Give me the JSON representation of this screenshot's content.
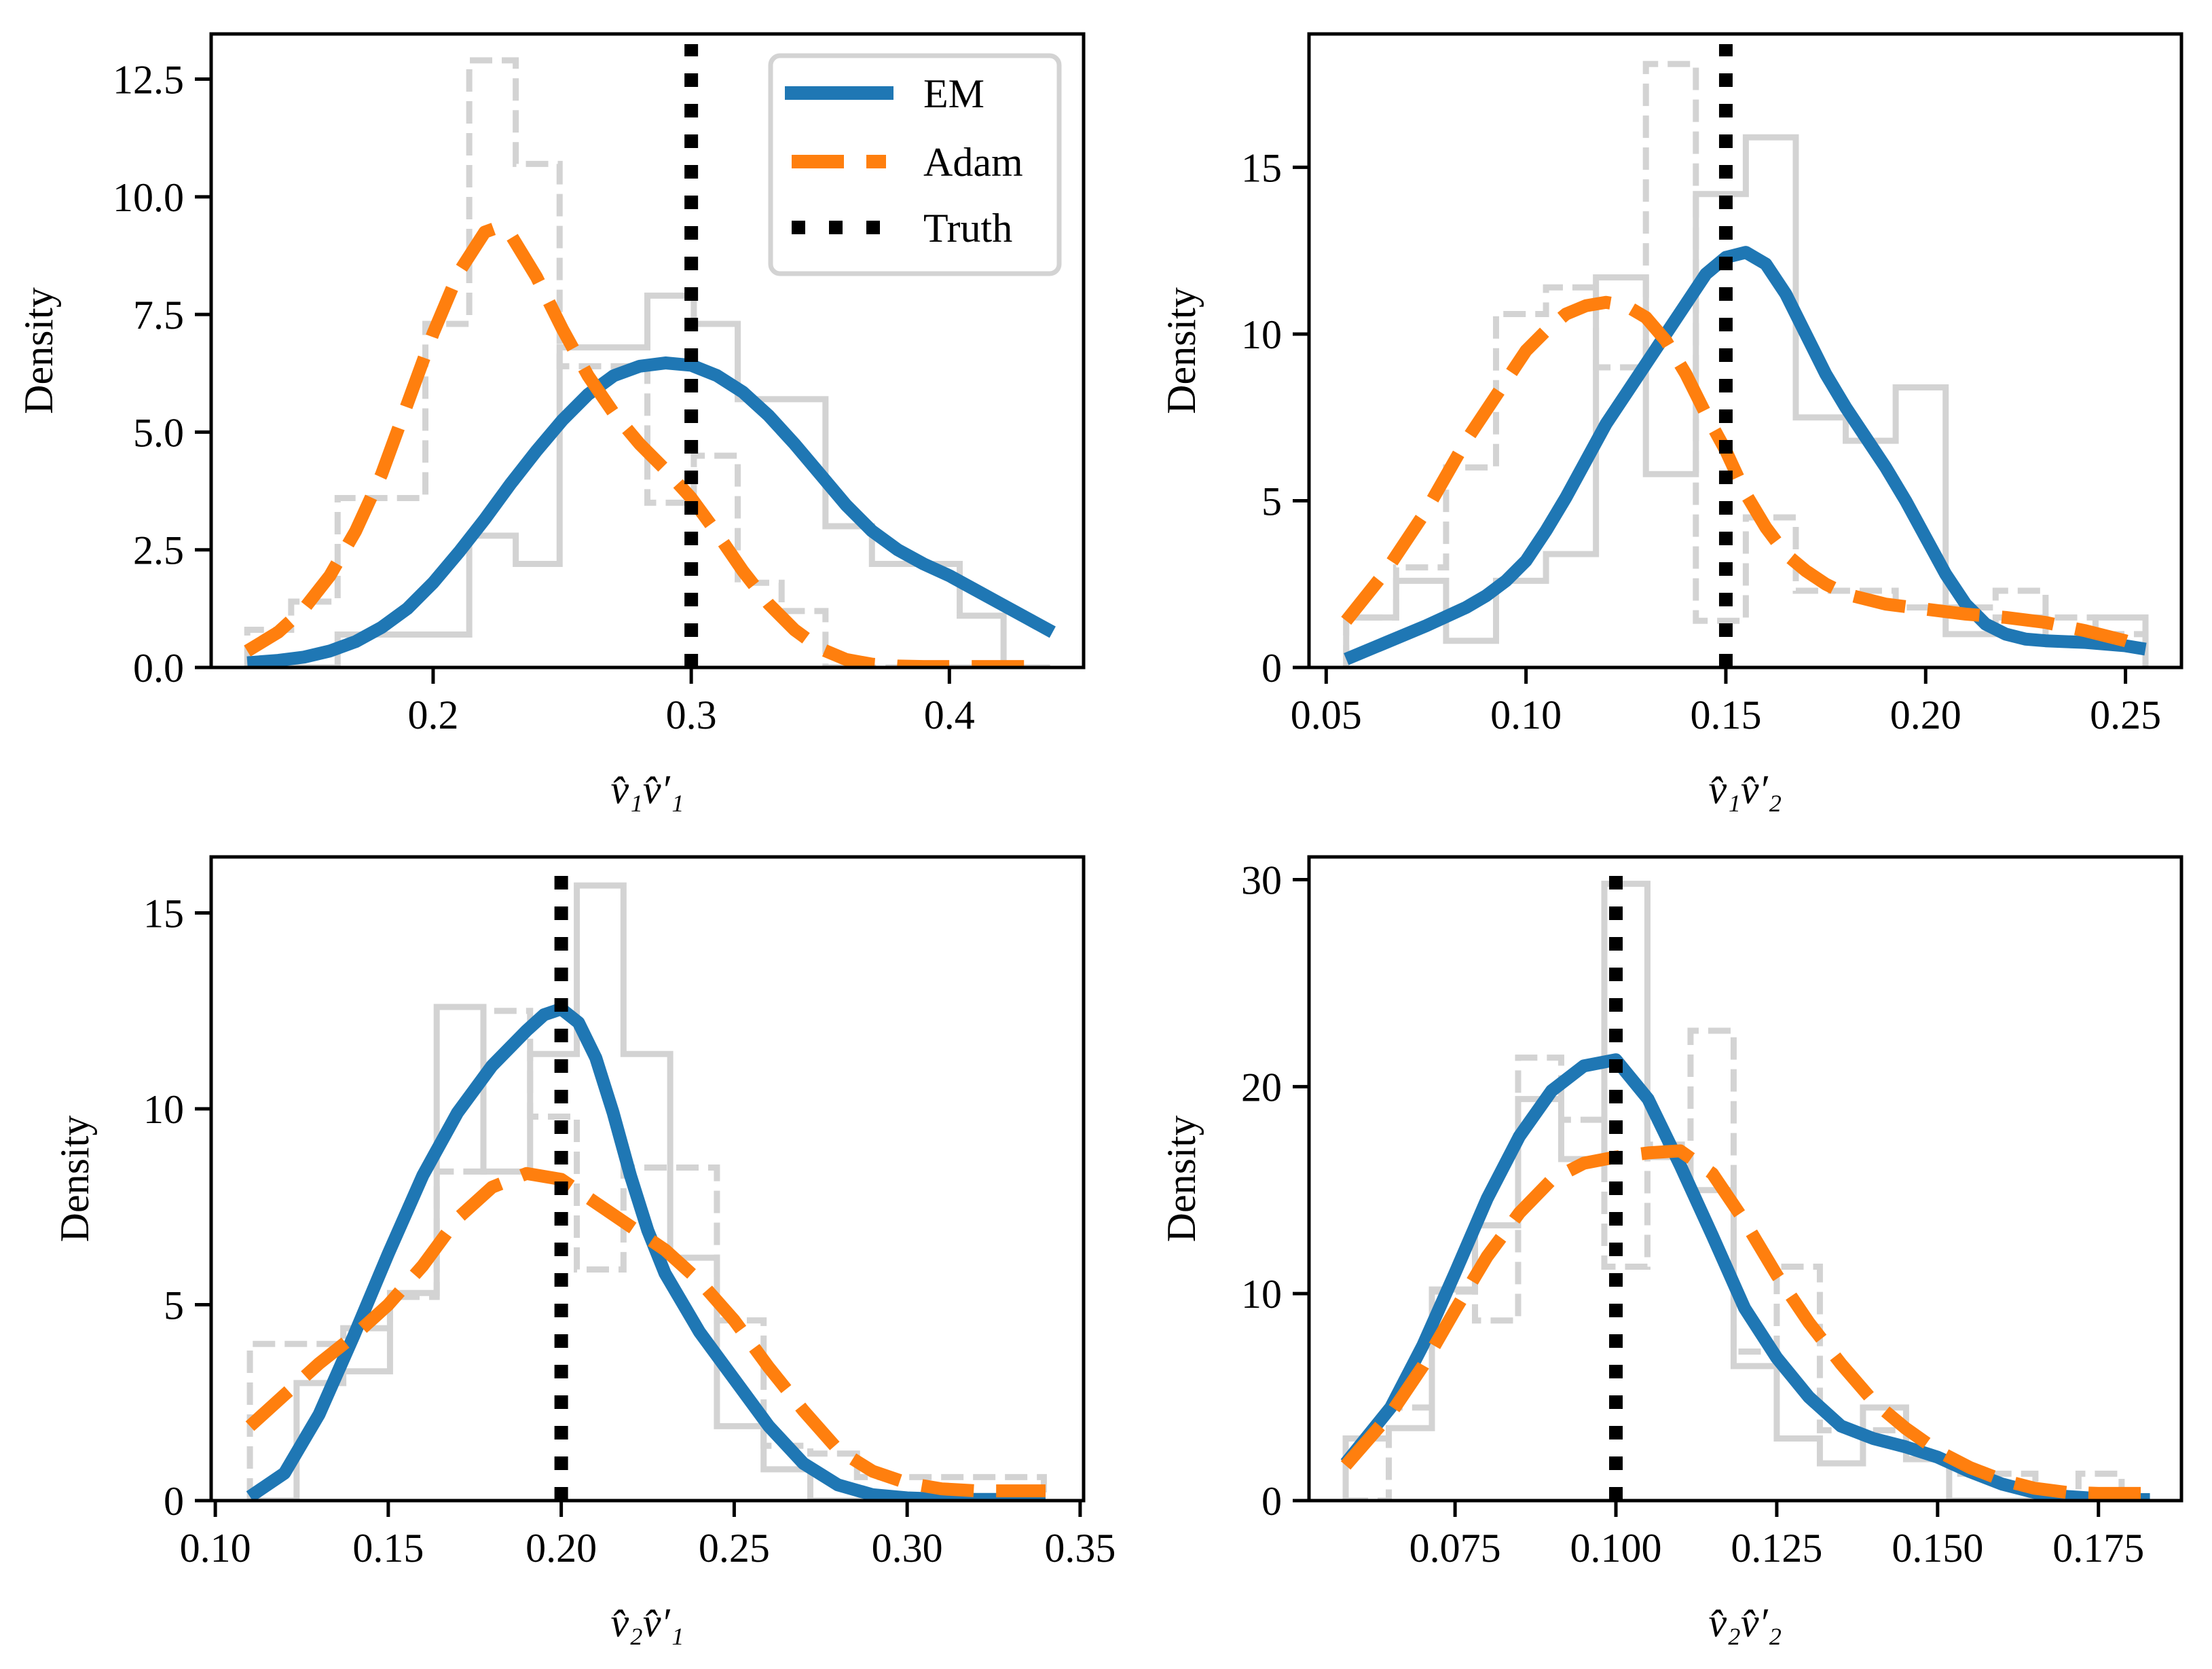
{
  "figure": {
    "legend_entries": [
      {
        "label": "EM",
        "color": "#1f77b4",
        "style": "solid"
      },
      {
        "label": "Adam",
        "color": "#ff7f0e",
        "style": "dashed"
      },
      {
        "label": "Truth",
        "color": "#000000",
        "style": "dotted"
      }
    ],
    "histogram_color": "#d3d3d3"
  },
  "chart_data": [
    {
      "type": "line",
      "title": "",
      "xlabel": "v̂₁v̂′₁",
      "ylabel": "Density",
      "xlim": [
        0.114,
        0.452
      ],
      "ylim": [
        0,
        13.46
      ],
      "xticks": [
        0.2,
        0.3,
        0.4
      ],
      "xtick_labels": [
        "0.2",
        "0.3",
        "0.4"
      ],
      "yticks": [
        0,
        2.5,
        5,
        7.5,
        10,
        12.5
      ],
      "ytick_labels": [
        "0.0",
        "2.5",
        "5.0",
        "7.5",
        "10.0",
        "12.5"
      ],
      "legend": "top-right",
      "truth": 0.3,
      "series": [
        {
          "name": "EM",
          "x": [
            0.128,
            0.14,
            0.15,
            0.16,
            0.17,
            0.18,
            0.19,
            0.2,
            0.21,
            0.22,
            0.23,
            0.24,
            0.25,
            0.26,
            0.27,
            0.28,
            0.29,
            0.3,
            0.31,
            0.32,
            0.33,
            0.34,
            0.35,
            0.36,
            0.37,
            0.38,
            0.39,
            0.4,
            0.41,
            0.42,
            0.43,
            0.44
          ],
          "y": [
            0.1,
            0.15,
            0.22,
            0.35,
            0.55,
            0.85,
            1.25,
            1.8,
            2.45,
            3.15,
            3.9,
            4.6,
            5.25,
            5.8,
            6.2,
            6.4,
            6.47,
            6.42,
            6.2,
            5.85,
            5.35,
            4.75,
            4.1,
            3.45,
            2.9,
            2.5,
            2.2,
            1.95,
            1.65,
            1.35,
            1.05,
            0.75
          ]
        },
        {
          "name": "Adam",
          "x": [
            0.128,
            0.14,
            0.15,
            0.16,
            0.17,
            0.18,
            0.19,
            0.2,
            0.21,
            0.22,
            0.225,
            0.23,
            0.24,
            0.25,
            0.26,
            0.27,
            0.28,
            0.29,
            0.3,
            0.31,
            0.32,
            0.33,
            0.34,
            0.35,
            0.36,
            0.37,
            0.38,
            0.39,
            0.4,
            0.41,
            0.42,
            0.43
          ],
          "y": [
            0.35,
            0.75,
            1.25,
            1.95,
            2.9,
            4.1,
            5.6,
            7.1,
            8.4,
            9.25,
            9.35,
            9.2,
            8.3,
            7.2,
            6.2,
            5.4,
            4.75,
            4.2,
            3.6,
            2.85,
            2.05,
            1.35,
            0.8,
            0.4,
            0.17,
            0.07,
            0.03,
            0.02,
            0.02,
            0.02,
            0.02,
            0.02
          ]
        }
      ],
      "histograms": [
        {
          "name": "EM",
          "style": "solid",
          "edges": [
            0.128,
            0.145,
            0.163,
            0.18,
            0.197,
            0.214,
            0.232,
            0.249,
            0.266,
            0.283,
            0.301,
            0.318,
            0.335,
            0.352,
            0.37,
            0.387,
            0.404,
            0.421,
            0.439
          ],
          "heights": [
            0.0,
            0.0,
            0.7,
            0.7,
            0.7,
            2.8,
            2.2,
            6.8,
            6.8,
            7.9,
            7.3,
            5.7,
            5.7,
            3.0,
            2.2,
            2.2,
            1.1,
            0.0
          ]
        },
        {
          "name": "Adam",
          "style": "dashed",
          "edges": [
            0.128,
            0.145,
            0.163,
            0.18,
            0.197,
            0.214,
            0.232,
            0.249,
            0.266,
            0.283,
            0.301,
            0.318,
            0.335,
            0.352,
            0.37,
            0.387,
            0.404,
            0.421,
            0.439
          ],
          "heights": [
            0.8,
            1.4,
            3.6,
            3.6,
            7.3,
            12.9,
            10.7,
            6.4,
            6.4,
            3.5,
            4.5,
            1.8,
            1.2,
            0.0,
            0.0,
            0.0,
            0.0,
            0.0
          ]
        }
      ]
    },
    {
      "type": "line",
      "title": "",
      "xlabel": "v̂₁v̂′₂",
      "ylabel": "Density",
      "xlim": [
        0.0457,
        0.264
      ],
      "ylim": [
        0,
        19.0
      ],
      "xticks": [
        0.05,
        0.1,
        0.15,
        0.2,
        0.25
      ],
      "xtick_labels": [
        "0.05",
        "0.10",
        "0.15",
        "0.20",
        "0.25"
      ],
      "yticks": [
        0,
        5,
        10,
        15
      ],
      "ytick_labels": [
        "0",
        "5",
        "10",
        "15"
      ],
      "truth": 0.15,
      "series": [
        {
          "name": "EM",
          "x": [
            0.055,
            0.065,
            0.075,
            0.085,
            0.09,
            0.095,
            0.1,
            0.105,
            0.11,
            0.115,
            0.12,
            0.125,
            0.13,
            0.135,
            0.14,
            0.145,
            0.15,
            0.155,
            0.16,
            0.165,
            0.17,
            0.175,
            0.18,
            0.185,
            0.19,
            0.195,
            0.2,
            0.205,
            0.21,
            0.215,
            0.22,
            0.225,
            0.23,
            0.24,
            0.25,
            0.255
          ],
          "y": [
            0.25,
            0.75,
            1.25,
            1.8,
            2.15,
            2.6,
            3.2,
            4.1,
            5.1,
            6.2,
            7.3,
            8.2,
            9.1,
            10.0,
            10.9,
            11.8,
            12.3,
            12.45,
            12.1,
            11.2,
            10.0,
            8.8,
            7.8,
            6.9,
            6.0,
            5.0,
            3.9,
            2.8,
            1.9,
            1.3,
            1.0,
            0.85,
            0.8,
            0.75,
            0.65,
            0.55
          ]
        },
        {
          "name": "Adam",
          "x": [
            0.055,
            0.065,
            0.075,
            0.085,
            0.095,
            0.1,
            0.105,
            0.11,
            0.115,
            0.12,
            0.125,
            0.13,
            0.135,
            0.14,
            0.145,
            0.15,
            0.155,
            0.16,
            0.165,
            0.17,
            0.175,
            0.18,
            0.19,
            0.2,
            0.21,
            0.22,
            0.23,
            0.24,
            0.25,
            0.255
          ],
          "y": [
            1.4,
            2.9,
            4.7,
            6.8,
            8.6,
            9.5,
            10.1,
            10.6,
            10.85,
            10.95,
            10.85,
            10.5,
            9.8,
            8.8,
            7.6,
            6.5,
            5.2,
            4.2,
            3.4,
            2.9,
            2.5,
            2.2,
            1.9,
            1.75,
            1.6,
            1.5,
            1.35,
            1.1,
            0.8,
            0.6
          ]
        }
      ],
      "histograms": [
        {
          "name": "EM",
          "style": "solid",
          "edges": [
            0.055,
            0.0675,
            0.08,
            0.0925,
            0.105,
            0.1175,
            0.13,
            0.1425,
            0.155,
            0.1675,
            0.18,
            0.1925,
            0.205,
            0.2175,
            0.23,
            0.2425,
            0.255
          ],
          "heights": [
            1.5,
            2.6,
            0.8,
            2.6,
            3.4,
            11.7,
            5.8,
            14.2,
            15.9,
            7.5,
            6.8,
            8.4,
            1.0,
            1.5,
            0.8,
            1.5
          ]
        },
        {
          "name": "Adam",
          "style": "dashed",
          "edges": [
            0.055,
            0.0675,
            0.08,
            0.0925,
            0.105,
            0.1175,
            0.13,
            0.1425,
            0.155,
            0.1675,
            0.18,
            0.1925,
            0.205,
            0.2175,
            0.23,
            0.2425,
            0.255
          ],
          "heights": [
            1.5,
            3.0,
            6.0,
            10.6,
            11.4,
            9.0,
            18.1,
            1.4,
            4.5,
            2.3,
            2.3,
            1.8,
            1.8,
            2.3,
            1.5,
            1.0
          ]
        }
      ]
    },
    {
      "type": "line",
      "title": "",
      "xlabel": "v̂₂v̂′₁",
      "ylabel": "Density",
      "xlim": [
        0.0988,
        0.351
      ],
      "ylim": [
        0,
        16.43
      ],
      "xticks": [
        0.1,
        0.15,
        0.2,
        0.25,
        0.3,
        0.35
      ],
      "xtick_labels": [
        "0.10",
        "0.15",
        "0.20",
        "0.25",
        "0.30",
        "0.35"
      ],
      "yticks": [
        0,
        5,
        10,
        15
      ],
      "ytick_labels": [
        "0",
        "5",
        "10",
        "15"
      ],
      "truth": 0.2,
      "series": [
        {
          "name": "EM",
          "x": [
            0.11,
            0.12,
            0.13,
            0.14,
            0.15,
            0.16,
            0.17,
            0.18,
            0.19,
            0.195,
            0.2,
            0.205,
            0.21,
            0.215,
            0.22,
            0.225,
            0.23,
            0.24,
            0.25,
            0.26,
            0.27,
            0.28,
            0.29,
            0.3,
            0.31,
            0.32,
            0.33,
            0.34
          ],
          "y": [
            0.1,
            0.7,
            2.2,
            4.2,
            6.3,
            8.3,
            9.9,
            11.1,
            12.0,
            12.4,
            12.55,
            12.2,
            11.3,
            9.9,
            8.3,
            6.9,
            5.8,
            4.3,
            3.1,
            1.9,
            0.95,
            0.4,
            0.15,
            0.07,
            0.04,
            0.03,
            0.03,
            0.03
          ]
        },
        {
          "name": "Adam",
          "x": [
            0.11,
            0.12,
            0.13,
            0.14,
            0.15,
            0.16,
            0.17,
            0.18,
            0.19,
            0.2,
            0.21,
            0.22,
            0.23,
            0.24,
            0.25,
            0.26,
            0.27,
            0.28,
            0.29,
            0.3,
            0.31,
            0.32,
            0.33,
            0.34
          ],
          "y": [
            1.9,
            2.7,
            3.5,
            4.2,
            5.0,
            6.0,
            7.2,
            8.0,
            8.35,
            8.2,
            7.6,
            7.0,
            6.4,
            5.6,
            4.6,
            3.4,
            2.3,
            1.3,
            0.75,
            0.45,
            0.3,
            0.25,
            0.25,
            0.25
          ]
        }
      ],
      "histograms": [
        {
          "name": "EM",
          "style": "solid",
          "edges": [
            0.11,
            0.1235,
            0.137,
            0.1505,
            0.164,
            0.1775,
            0.191,
            0.2045,
            0.218,
            0.2315,
            0.245,
            0.2585,
            0.272,
            0.2855,
            0.299,
            0.3125,
            0.326,
            0.3395
          ],
          "heights": [
            0.0,
            3.0,
            3.3,
            5.3,
            12.6,
            8.4,
            11.4,
            15.7,
            11.4,
            6.2,
            1.9,
            0.8,
            0.0,
            0.0,
            0.0,
            0.0,
            0.0
          ]
        },
        {
          "name": "Adam",
          "style": "dashed",
          "edges": [
            0.11,
            0.1235,
            0.137,
            0.1505,
            0.164,
            0.1775,
            0.191,
            0.2045,
            0.218,
            0.2315,
            0.245,
            0.2585,
            0.272,
            0.2855,
            0.299,
            0.3125,
            0.326,
            0.3395
          ],
          "heights": [
            4.0,
            4.0,
            4.4,
            5.2,
            8.4,
            12.5,
            9.8,
            5.9,
            8.5,
            8.5,
            4.6,
            1.4,
            1.2,
            0.6,
            0.6,
            0.6,
            0.6
          ]
        }
      ]
    },
    {
      "type": "line",
      "title": "",
      "xlabel": "v̂₂v̂′₂",
      "ylabel": "Density",
      "xlim": [
        0.0523,
        0.1879
      ],
      "ylim": [
        0,
        31.1
      ],
      "xticks": [
        0.075,
        0.1,
        0.125,
        0.15,
        0.175
      ],
      "xtick_labels": [
        "0.075",
        "0.100",
        "0.125",
        "0.150",
        "0.175"
      ],
      "yticks": [
        0,
        10,
        20,
        30
      ],
      "ytick_labels": [
        "0",
        "10",
        "20",
        "30"
      ],
      "truth": 0.1,
      "series": [
        {
          "name": "EM",
          "x": [
            0.058,
            0.065,
            0.07,
            0.075,
            0.08,
            0.085,
            0.09,
            0.095,
            0.1,
            0.105,
            0.11,
            0.115,
            0.12,
            0.125,
            0.13,
            0.135,
            0.14,
            0.145,
            0.15,
            0.155,
            0.16,
            0.165,
            0.17,
            0.175,
            0.18,
            0.183
          ],
          "y": [
            1.8,
            4.5,
            7.5,
            11.0,
            14.6,
            17.6,
            19.8,
            21.0,
            21.3,
            19.4,
            16.2,
            12.8,
            9.3,
            6.9,
            5.0,
            3.6,
            3.0,
            2.6,
            2.1,
            1.4,
            0.8,
            0.4,
            0.2,
            0.1,
            0.05,
            0.05
          ]
        },
        {
          "name": "Adam",
          "x": [
            0.058,
            0.065,
            0.07,
            0.075,
            0.08,
            0.085,
            0.09,
            0.095,
            0.1,
            0.105,
            0.11,
            0.115,
            0.12,
            0.125,
            0.13,
            0.135,
            0.14,
            0.145,
            0.15,
            0.155,
            0.16,
            0.165,
            0.17,
            0.175,
            0.18,
            0.183
          ],
          "y": [
            1.7,
            4.2,
            6.5,
            9.2,
            11.8,
            13.9,
            15.5,
            16.3,
            16.6,
            16.8,
            16.9,
            15.8,
            13.5,
            10.9,
            8.6,
            6.6,
            4.8,
            3.5,
            2.4,
            1.6,
            1.0,
            0.6,
            0.4,
            0.35,
            0.35,
            0.35
          ]
        }
      ],
      "histograms": [
        {
          "name": "EM",
          "style": "solid",
          "edges": [
            0.058,
            0.0647,
            0.0714,
            0.0781,
            0.0848,
            0.0915,
            0.0982,
            0.1049,
            0.1116,
            0.1183,
            0.125,
            0.1317,
            0.1384,
            0.1451,
            0.1518,
            0.1585,
            0.1652,
            0.1719,
            0.1786
          ],
          "heights": [
            3.0,
            3.5,
            10.2,
            13.3,
            19.4,
            16.5,
            29.8,
            16.6,
            15.0,
            6.5,
            3.0,
            1.8,
            4.5,
            2.0,
            0.0,
            0.0,
            0.0,
            0.0
          ]
        },
        {
          "name": "Adam",
          "style": "dashed",
          "edges": [
            0.058,
            0.0647,
            0.0714,
            0.0781,
            0.0848,
            0.0915,
            0.0982,
            0.1049,
            0.1116,
            0.1183,
            0.125,
            0.1317,
            0.1384,
            0.1451,
            0.1518,
            0.1585,
            0.1652,
            0.1719,
            0.1786
          ],
          "heights": [
            0.0,
            4.5,
            10.1,
            8.7,
            21.4,
            18.4,
            11.3,
            17.2,
            22.7,
            7.2,
            11.3,
            3.4,
            3.4,
            2.0,
            1.3,
            1.3,
            0.0,
            1.3
          ]
        }
      ]
    }
  ]
}
